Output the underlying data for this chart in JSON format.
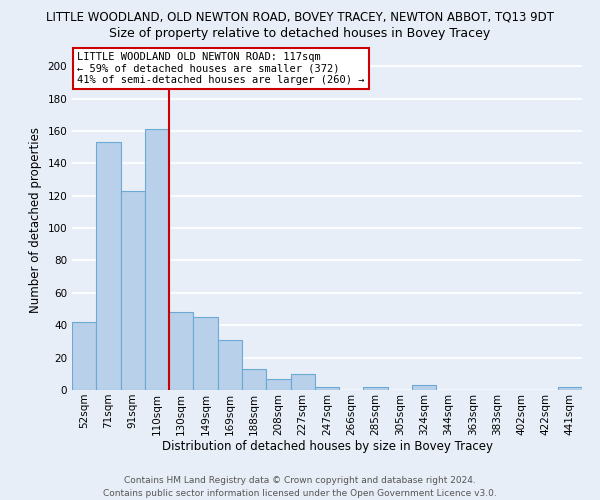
{
  "title": "LITTLE WOODLAND, OLD NEWTON ROAD, BOVEY TRACEY, NEWTON ABBOT, TQ13 9DT",
  "subtitle": "Size of property relative to detached houses in Bovey Tracey",
  "xlabel": "Distribution of detached houses by size in Bovey Tracey",
  "ylabel": "Number of detached properties",
  "bin_labels": [
    "52sqm",
    "71sqm",
    "91sqm",
    "110sqm",
    "130sqm",
    "149sqm",
    "169sqm",
    "188sqm",
    "208sqm",
    "227sqm",
    "247sqm",
    "266sqm",
    "285sqm",
    "305sqm",
    "324sqm",
    "344sqm",
    "363sqm",
    "383sqm",
    "402sqm",
    "422sqm",
    "441sqm"
  ],
  "bar_values": [
    42,
    153,
    123,
    161,
    48,
    45,
    31,
    13,
    7,
    10,
    2,
    0,
    2,
    0,
    3,
    0,
    0,
    0,
    0,
    0,
    2
  ],
  "bar_color": "#b8d0ea",
  "bar_edge_color": "#6aaad4",
  "property_line_x": 3.5,
  "vline_color": "#cc0000",
  "annotation_title": "LITTLE WOODLAND OLD NEWTON ROAD: 117sqm",
  "annotation_line1": "← 59% of detached houses are smaller (372)",
  "annotation_line2": "41% of semi-detached houses are larger (260) →",
  "annotation_box_facecolor": "#ffffff",
  "annotation_box_edgecolor": "#cc0000",
  "ylim": [
    0,
    210
  ],
  "yticks": [
    0,
    20,
    40,
    60,
    80,
    100,
    120,
    140,
    160,
    180,
    200
  ],
  "footer_line1": "Contains HM Land Registry data © Crown copyright and database right 2024.",
  "footer_line2": "Contains public sector information licensed under the Open Government Licence v3.0.",
  "background_color": "#e8eef7",
  "grid_color": "#ffffff",
  "title_fontsize": 8.5,
  "subtitle_fontsize": 9,
  "axis_label_fontsize": 8.5,
  "tick_fontsize": 7.5,
  "annotation_fontsize": 7.5,
  "footer_fontsize": 6.5
}
